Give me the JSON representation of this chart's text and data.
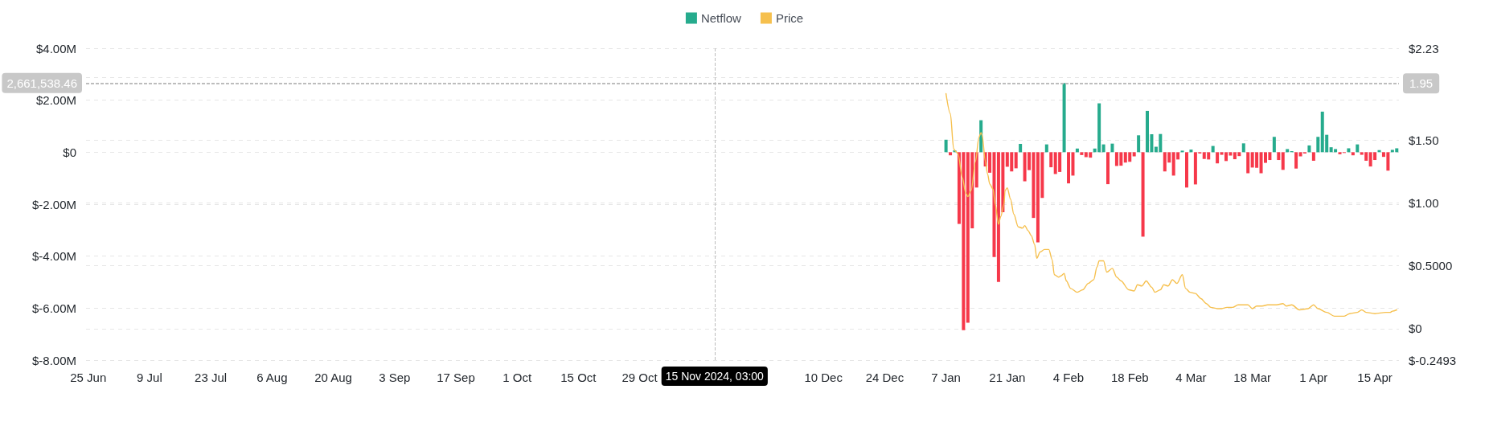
{
  "chart_data": {
    "type": "bar",
    "x": [
      "2025-01-07",
      "2025-01-08",
      "2025-01-09",
      "2025-01-10",
      "2025-01-11",
      "2025-01-12",
      "2025-01-13",
      "2025-01-14",
      "2025-01-15",
      "2025-01-16",
      "2025-01-17",
      "2025-01-18",
      "2025-01-19",
      "2025-01-20",
      "2025-01-21",
      "2025-01-22",
      "2025-01-23",
      "2025-01-24",
      "2025-01-25",
      "2025-01-26",
      "2025-01-27",
      "2025-01-28",
      "2025-01-29",
      "2025-01-30",
      "2025-01-31",
      "2025-02-01",
      "2025-02-02",
      "2025-02-03",
      "2025-02-04",
      "2025-02-05",
      "2025-02-06",
      "2025-02-07",
      "2025-02-08",
      "2025-02-09",
      "2025-02-10",
      "2025-02-11",
      "2025-02-12",
      "2025-02-13",
      "2025-02-14",
      "2025-02-15",
      "2025-02-16",
      "2025-02-17",
      "2025-02-18",
      "2025-02-19",
      "2025-02-20",
      "2025-02-21",
      "2025-02-22",
      "2025-02-23",
      "2025-02-24",
      "2025-02-25",
      "2025-02-26",
      "2025-02-27",
      "2025-02-28",
      "2025-03-01",
      "2025-03-02",
      "2025-03-03",
      "2025-03-04",
      "2025-03-05",
      "2025-03-06",
      "2025-03-07",
      "2025-03-08",
      "2025-03-09",
      "2025-03-10",
      "2025-03-11",
      "2025-03-12",
      "2025-03-13",
      "2025-03-14",
      "2025-03-15",
      "2025-03-16",
      "2025-03-17",
      "2025-03-18",
      "2025-03-19",
      "2025-03-20",
      "2025-03-21",
      "2025-03-22",
      "2025-03-23",
      "2025-03-24",
      "2025-03-25",
      "2025-03-26",
      "2025-03-27",
      "2025-03-28",
      "2025-03-29",
      "2025-03-30",
      "2025-03-31",
      "2025-04-01",
      "2025-04-02",
      "2025-04-03",
      "2025-04-04",
      "2025-04-05",
      "2025-04-06",
      "2025-04-07",
      "2025-04-08",
      "2025-04-09",
      "2025-04-10",
      "2025-04-11",
      "2025-04-12",
      "2025-04-13",
      "2025-04-14",
      "2025-04-15",
      "2025-04-16",
      "2025-04-17",
      "2025-04-18",
      "2025-04-19",
      "2025-04-20"
    ],
    "series": [
      {
        "name": "Netflow",
        "color": "#26ab8d",
        "values": [
          480000,
          -120000,
          70000,
          -2760000,
          -6850000,
          -6560000,
          -2930000,
          -1360000,
          1230000,
          -550000,
          -790000,
          -4030000,
          -4990000,
          -2310000,
          -560000,
          -740000,
          -620000,
          320000,
          -1120000,
          -690000,
          -2530000,
          -3470000,
          -1760000,
          300000,
          -580000,
          -840000,
          -760000,
          2660000,
          -1200000,
          -900000,
          140000,
          -110000,
          -190000,
          -210000,
          140000,
          1880000,
          300000,
          -1230000,
          330000,
          -530000,
          -520000,
          -400000,
          -370000,
          -160000,
          650000,
          -3250000,
          1590000,
          690000,
          210000,
          700000,
          -740000,
          -400000,
          -900000,
          -280000,
          60000,
          -1360000,
          100000,
          -1240000,
          -50000,
          -260000,
          -280000,
          240000,
          -430000,
          -100000,
          -340000,
          -130000,
          -270000,
          -150000,
          340000,
          -810000,
          -590000,
          -600000,
          -810000,
          -410000,
          -300000,
          590000,
          -300000,
          -680000,
          120000,
          40000,
          -630000,
          -160000,
          -50000,
          260000,
          -330000,
          590000,
          1560000,
          670000,
          190000,
          120000,
          -80000,
          -30000,
          150000,
          -120000,
          300000,
          -100000,
          -330000,
          -550000,
          -300000,
          80000,
          -180000,
          -710000,
          90000,
          150000
        ],
        "colors": [
          "#26ab8d",
          "#f6384a",
          "#26ab8d",
          "#f6384a",
          "#f6384a",
          "#f6384a",
          "#f6384a",
          "#f6384a",
          "#26ab8d",
          "#f6384a",
          "#f6384a",
          "#f6384a",
          "#f6384a",
          "#f6384a",
          "#f6384a",
          "#f6384a",
          "#f6384a",
          "#26ab8d",
          "#f6384a",
          "#f6384a",
          "#f6384a",
          "#f6384a",
          "#f6384a",
          "#26ab8d",
          "#f6384a",
          "#f6384a",
          "#f6384a",
          "#26ab8d",
          "#f6384a",
          "#f6384a",
          "#26ab8d",
          "#f6384a",
          "#f6384a",
          "#f6384a",
          "#26ab8d",
          "#26ab8d",
          "#26ab8d",
          "#f6384a",
          "#26ab8d",
          "#f6384a",
          "#f6384a",
          "#f6384a",
          "#f6384a",
          "#f6384a",
          "#26ab8d",
          "#f6384a",
          "#26ab8d",
          "#26ab8d",
          "#26ab8d",
          "#26ab8d",
          "#f6384a",
          "#f6384a",
          "#f6384a",
          "#f6384a",
          "#26ab8d",
          "#f6384a",
          "#26ab8d",
          "#f6384a",
          "#f6384a",
          "#f6384a",
          "#f6384a",
          "#26ab8d",
          "#f6384a",
          "#f6384a",
          "#f6384a",
          "#f6384a",
          "#f6384a",
          "#f6384a",
          "#26ab8d",
          "#f6384a",
          "#f6384a",
          "#f6384a",
          "#f6384a",
          "#f6384a",
          "#f6384a",
          "#26ab8d",
          "#f6384a",
          "#f6384a",
          "#26ab8d",
          "#26ab8d",
          "#f6384a",
          "#f6384a",
          "#f6384a",
          "#26ab8d",
          "#f6384a",
          "#26ab8d",
          "#26ab8d",
          "#26ab8d",
          "#26ab8d",
          "#26ab8d",
          "#f6384a",
          "#f6384a",
          "#26ab8d",
          "#f6384a",
          "#26ab8d",
          "#f6384a",
          "#f6384a",
          "#f6384a",
          "#f6384a",
          "#26ab8d",
          "#f6384a",
          "#f6384a",
          "#26ab8d",
          "#26ab8d"
        ]
      },
      {
        "name": "Price",
        "type": "line",
        "axis": "y2",
        "color": "#f6c04e",
        "x": [
          "2025-01-07T00:00",
          "2025-01-08T00:00",
          "2025-01-08T18:00",
          "2025-01-09T06:00",
          "2025-01-09T18:00",
          "2025-01-10T18:00",
          "2025-01-11T12:00",
          "2025-01-12T00:00",
          "2025-01-12T18:00",
          "2025-01-13T18:00",
          "2025-01-14T12:00",
          "2025-01-15T00:00",
          "2025-01-15T06:00",
          "2025-01-16T00:00",
          "2025-01-16T12:00",
          "2025-01-17T00:00",
          "2025-01-17T18:00",
          "2025-01-18T06:00",
          "2025-01-19T00:00",
          "2025-01-19T12:00",
          "2025-01-20T06:00",
          "2025-01-20T12:00",
          "2025-01-21T00:00",
          "2025-01-21T18:00",
          "2025-01-22T12:00",
          "2025-01-23T12:00",
          "2025-01-24T12:00",
          "2025-01-25T00:00",
          "2025-01-25T18:00",
          "2025-01-26T12:00",
          "2025-01-27T06:00",
          "2025-01-27T18:00",
          "2025-01-28T12:00",
          "2025-01-29T12:00",
          "2025-01-30T12:00",
          "2025-01-31T06:00",
          "2025-01-31T18:00",
          "2025-02-01T18:00",
          "2025-02-02T06:00",
          "2025-02-03T00:00",
          "2025-02-03T12:00",
          "2025-02-04T12:00",
          "2025-02-06T00:00",
          "2025-02-07T06:00",
          "2025-02-08T12:00",
          "2025-02-09T18:00",
          "2025-02-10T12:00",
          "2025-02-11T00:00",
          "2025-02-12T00:00",
          "2025-02-12T18:00",
          "2025-02-14T00:00",
          "2025-02-15T00:00",
          "2025-02-16T00:00",
          "2025-02-17T18:00",
          "2025-02-19T00:00",
          "2025-02-19T18:00",
          "2025-02-20T18:00",
          "2025-02-21T18:00",
          "2025-02-23T00:00",
          "2025-02-23T18:00",
          "2025-02-25T00:00",
          "2025-02-25T18:00",
          "2025-02-26T18:00",
          "2025-02-27T18:00",
          "2025-02-28T18:00",
          "2025-03-02T00:00",
          "2025-03-02T18:00",
          "2025-03-03T18:00",
          "2025-03-05T00:00",
          "2025-03-06T06:00",
          "2025-03-07T12:00",
          "2025-03-08T12:00",
          "2025-03-10T00:00",
          "2025-03-11T00:00",
          "2025-03-12T06:00",
          "2025-03-13T12:00",
          "2025-03-14T18:00",
          "2025-03-17T00:00",
          "2025-03-18T00:00",
          "2025-03-19T00:00",
          "2025-03-20T06:00",
          "2025-03-21T12:00",
          "2025-03-23T12:00",
          "2025-03-25T00:00",
          "2025-03-25T18:00",
          "2025-03-27T00:00",
          "2025-03-28T18:00",
          "2025-03-30T18:00",
          "2025-04-01T00:00",
          "2025-04-02T00:00",
          "2025-04-04T00:00",
          "2025-04-05T18:00",
          "2025-04-08T00:00",
          "2025-04-09T06:00",
          "2025-04-11T00:00",
          "2025-04-12T00:00",
          "2025-04-13T00:00",
          "2025-04-15T00:00",
          "2025-04-17T12:00",
          "2025-04-18T12:00",
          "2025-04-19T00:00",
          "2025-04-20T00:00"
        ],
        "values": [
          1.87,
          1.71,
          1.43,
          1.41,
          1.39,
          1.2,
          1.08,
          1.05,
          1.1,
          1.33,
          1.52,
          1.56,
          1.54,
          1.33,
          1.23,
          1.15,
          1.11,
          0.99,
          0.83,
          0.89,
          0.99,
          1.1,
          1.12,
          1.03,
          0.91,
          0.81,
          0.8,
          0.82,
          0.78,
          0.74,
          0.67,
          0.56,
          0.61,
          0.63,
          0.63,
          0.55,
          0.43,
          0.41,
          0.42,
          0.44,
          0.38,
          0.32,
          0.29,
          0.31,
          0.36,
          0.39,
          0.49,
          0.54,
          0.54,
          0.45,
          0.48,
          0.41,
          0.38,
          0.31,
          0.3,
          0.35,
          0.34,
          0.38,
          0.33,
          0.29,
          0.31,
          0.35,
          0.34,
          0.39,
          0.36,
          0.43,
          0.32,
          0.29,
          0.28,
          0.24,
          0.2,
          0.17,
          0.16,
          0.16,
          0.17,
          0.17,
          0.19,
          0.19,
          0.16,
          0.18,
          0.18,
          0.19,
          0.19,
          0.2,
          0.18,
          0.19,
          0.15,
          0.16,
          0.19,
          0.16,
          0.13,
          0.1,
          0.1,
          0.12,
          0.13,
          0.15,
          0.13,
          0.12,
          0.13,
          0.13,
          0.14,
          0.15
        ]
      }
    ],
    "xlim": [
      "2024-06-24T12:00",
      "2025-04-20T12:00"
    ],
    "xticks": [
      {
        "value": "2024-06-25",
        "label": "25 Jun"
      },
      {
        "value": "2024-07-09",
        "label": "9 Jul"
      },
      {
        "value": "2024-07-23",
        "label": "23 Jul"
      },
      {
        "value": "2024-08-06",
        "label": "6 Aug"
      },
      {
        "value": "2024-08-20",
        "label": "20 Aug"
      },
      {
        "value": "2024-09-03",
        "label": "3 Sep"
      },
      {
        "value": "2024-09-17",
        "label": "17 Sep"
      },
      {
        "value": "2024-10-01",
        "label": "1 Oct"
      },
      {
        "value": "2024-10-15",
        "label": "15 Oct"
      },
      {
        "value": "2024-10-29",
        "label": "29 Oct"
      },
      {
        "value": "2024-12-10",
        "label": "10 Dec"
      },
      {
        "value": "2024-12-24",
        "label": "24 Dec"
      },
      {
        "value": "2025-01-07",
        "label": "7 Jan"
      },
      {
        "value": "2025-01-21",
        "label": "21 Jan"
      },
      {
        "value": "2025-02-04",
        "label": "4 Feb"
      },
      {
        "value": "2025-02-18",
        "label": "18 Feb"
      },
      {
        "value": "2025-03-04",
        "label": "4 Mar"
      },
      {
        "value": "2025-03-18",
        "label": "18 Mar"
      },
      {
        "value": "2025-04-01",
        "label": "1 Apr"
      },
      {
        "value": "2025-04-15",
        "label": "15 Apr"
      }
    ],
    "ylim": [
      -8000000,
      4000000
    ],
    "yticks": [
      {
        "value": -8000000,
        "label": "$-8.00M"
      },
      {
        "value": -6000000,
        "label": "$-6.00M"
      },
      {
        "value": -4000000,
        "label": "$-4.00M"
      },
      {
        "value": -2000000,
        "label": "$-2.00M"
      },
      {
        "value": 0,
        "label": "$0"
      },
      {
        "value": 2000000,
        "label": "$2.00M"
      },
      {
        "value": 4000000,
        "label": "$4.00M"
      }
    ],
    "y2lim": [
      -0.2493,
      2.23
    ],
    "y2ticks": [
      {
        "value": -0.2493,
        "label": "$-0.2493"
      },
      {
        "value": 0,
        "label": "$0"
      },
      {
        "value": 0.5,
        "label": "$0.5000"
      },
      {
        "value": 1,
        "label": "$1.00"
      },
      {
        "value": 1.5,
        "label": "$1.50"
      },
      {
        "value": 2,
        "label": null
      },
      {
        "value": 2.23,
        "label": "$2.23"
      }
    ],
    "ref_lines": [
      {
        "axis": "x",
        "value": "2024-11-15T03:00",
        "label": "15 Nov 2024, 03:00",
        "color": "#bdbdbd",
        "line_style": "dashed"
      },
      {
        "axis": "y",
        "value": 2661538.46,
        "label": "2,661,538.46",
        "color": "#bdbdbd",
        "line_style": "dashed"
      },
      {
        "axis": "y2",
        "value": 1.95,
        "label": "1.95",
        "color": "#bdbdbd",
        "line_style": "dashed"
      }
    ],
    "grid": "y",
    "legend": "top",
    "marker": "none"
  }
}
